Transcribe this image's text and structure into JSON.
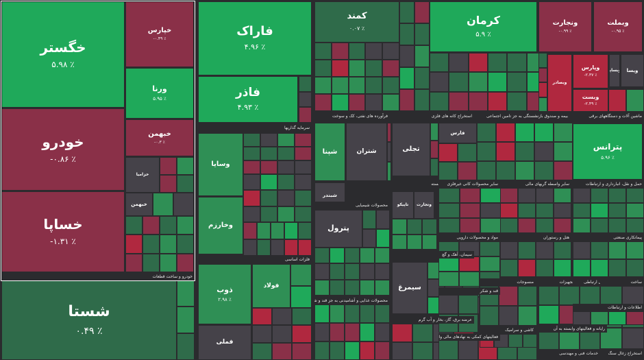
{
  "chart_data": {
    "type": "treemap",
    "colors": {
      "strong_green": "#1fa95a",
      "green": "#2f8f55",
      "dark_green": "#2f6b4a",
      "neutral": "#454249",
      "red": "#8a3048",
      "strong_red": "#b0283f"
    },
    "tiles": [
      {
        "name": "خگستر",
        "change": "۵.۹۸ ٪",
        "value": 5.98
      },
      {
        "name": "خودرو",
        "change": "-۰.۸۶ ٪",
        "value": -0.86
      },
      {
        "name": "خساپا",
        "change": "-۱.۳۱ ٪",
        "value": -1.31
      },
      {
        "name": "شستا",
        "change": "۰.۴۹ ٪",
        "value": 0.49
      },
      {
        "name": "خپارس",
        "change": "-۰.۴۹ ٪",
        "value": -0.49
      },
      {
        "name": "ورنا",
        "change": "۵.۹۵ ٪",
        "value": 5.95
      },
      {
        "name": "خبهمن",
        "change": "-۰.۳ ٪",
        "value": -0.3
      },
      {
        "name": "خزامیا",
        "change": "",
        "value": 0
      },
      {
        "name": "فاراک",
        "change": "۴.۹۶ ٪",
        "value": 4.96
      },
      {
        "name": "فاذر",
        "change": "۴.۹۳ ٪",
        "value": 4.93
      },
      {
        "name": "کمند",
        "change": "۰.۰۷ ٪",
        "value": 0.07
      },
      {
        "name": "کرمان",
        "change": "۵.۹ ٪",
        "value": 5.9
      },
      {
        "name": "ونجارت",
        "change": "-۰.۹۹ ٪",
        "value": -0.99
      },
      {
        "name": "وبملت",
        "change": "-۰.۹۵ ٪",
        "value": -0.95
      },
      {
        "name": "وپارس",
        "change": "-۲.۳۷ ٪",
        "value": -2.37
      },
      {
        "name": "وبصادر",
        "change": "",
        "value": -2
      },
      {
        "name": "ویسا",
        "change": "",
        "value": 0
      },
      {
        "name": "وبساپا",
        "change": "",
        "value": 0
      },
      {
        "name": "وبست",
        "change": "-۲.۴۹ ٪",
        "value": -2.49
      },
      {
        "name": "وسایا",
        "change": "",
        "value": 2
      },
      {
        "name": "وخارزم",
        "change": "",
        "value": 2
      },
      {
        "name": "ذوب",
        "change": "۲.۹۸ ٪",
        "value": 2.98
      },
      {
        "name": "فولاد",
        "change": "",
        "value": 1.6
      },
      {
        "name": "فملی",
        "change": "",
        "value": 0
      },
      {
        "name": "شپنا",
        "change": "",
        "value": 2
      },
      {
        "name": "شبندر",
        "change": "",
        "value": 0
      },
      {
        "name": "شتران",
        "change": "",
        "value": 0
      },
      {
        "name": "پترول",
        "change": "",
        "value": 0
      },
      {
        "name": "تاپیکو",
        "change": "",
        "value": 0
      },
      {
        "name": "تجلی",
        "change": "",
        "value": 0
      },
      {
        "name": "وتجارت",
        "change": "",
        "value": 0
      },
      {
        "name": "سیمرغ",
        "change": "",
        "value": 0
      },
      {
        "name": "پترانس",
        "change": "۵.۹۶ ٪",
        "value": 5.96
      },
      {
        "name": "فارس",
        "change": "",
        "value": 0
      },
      {
        "name": "خبهمن",
        "change": "",
        "value": 0
      }
    ],
    "sectors": [
      "خودرو و ساخت قطعات",
      "سرمایه گذاریها",
      "فلزات اساسی",
      "محصولات شیمیایی",
      "محصولات غذایی و آشامیدنی به جز قند و شکر",
      "استخراج کانه های فلزی",
      "فرآورده های نفتی، کک و سوخت",
      "بیمه و صندوق بازنشستگی به جز تامین اجتماعی",
      "بانکها و موسسات اعتباری",
      "ماشین آلات و دستگاههای برقی",
      "حمل و نقل، انبارداری و ارتباطات",
      "زراعت و خدمات وابسته",
      "سایر محصولات کانی غیرفلزی",
      "سایر واسطه گریهای مالی",
      "مواد و محصولات دارویی",
      "سیمان، آهک و گچ",
      "هتل و رستوران",
      "لاستیک و پلاستیک",
      "پیمانکاری صنعتی",
      "قند و شکر",
      "عرضه برق، گاز، بخار و آب گرم",
      "ماشین آلات و تجهیزات",
      "ساخت دستگاهها و وسایل ارتباطی",
      "فعالیتهای کمکی به نهادهای مالی واسط",
      "خدمات فنی و مهندسی",
      "اطلاعات و ارتباطات",
      "رایانه و فعالیتهای وابسته به آن",
      "ساخت",
      "منسوجات",
      "استخراج زغال سنگ",
      "کاشی و سرامیک"
    ]
  }
}
